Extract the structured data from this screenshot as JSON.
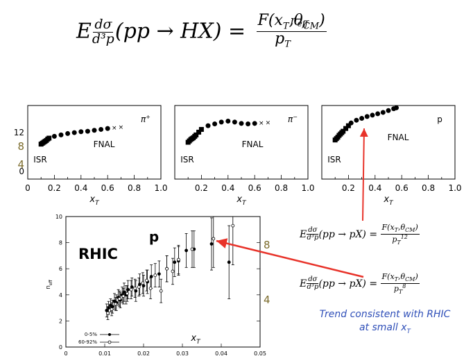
{
  "main_equation": {
    "lhs_E": "E",
    "lhs_num": "dσ",
    "lhs_den": "d³p",
    "lhs_paren": "(pp → HX) =",
    "rhs_num": "F(x",
    "rhs_num_sub": "T",
    "rhs_num_rest": ",θ",
    "rhs_num_sub2": "CM",
    "rhs_num_close": ")",
    "rhs_den": "p",
    "rhs_den_sub": "T",
    "rhs_den_sup": "n",
    "rhs_den_sup_sub": "eff"
  },
  "top_panels": {
    "x_ticks": [
      "0",
      "0.2",
      "0.4",
      "0.6",
      "0.8",
      "1.0"
    ],
    "x_label": "x",
    "x_label_sub": "T",
    "y_ticks": [
      "12",
      "8",
      "4",
      "0"
    ],
    "panels": [
      {
        "particle": "π",
        "charge": "+",
        "fnal": "FNAL",
        "isr": "ISR"
      },
      {
        "particle": "π",
        "charge": "−",
        "fnal": "FNAL",
        "isr": "ISR"
      },
      {
        "particle": "p",
        "charge": "",
        "fnal": "FNAL",
        "isr": "ISR"
      }
    ]
  },
  "rhic_plot": {
    "label": "RHIC",
    "particle": "p",
    "ylabel": "n",
    "ylabel_sub": "eff",
    "xlabel": "x",
    "xlabel_sub": "T",
    "x_ticks": [
      "0",
      "0.01",
      "0.02",
      "0.03",
      "0.04",
      "0.05"
    ],
    "y_ticks": [
      "0",
      "2",
      "4",
      "6",
      "8",
      "10"
    ],
    "right_ticks": [
      "8",
      "4"
    ],
    "legend": [
      "0-5%",
      "60-92%"
    ]
  },
  "eq12": {
    "E": "E",
    "num": "dσ",
    "den": "d³p",
    "paren": "(pp → pX) =",
    "rnum": "F(x",
    "rnum_sub": "T",
    "rnum_mid": ",θ",
    "rnum_sub2": "CM",
    "rnum_close": ")",
    "rden": "p",
    "rden_sub": "T",
    "rden_sup": "12"
  },
  "eq8": {
    "E": "E",
    "num": "dσ",
    "den": "d³p",
    "paren": "(pp → pX) =",
    "rnum": "F(x",
    "rnum_sub": "T",
    "rnum_mid": ",θ",
    "rnum_sub2": "CM",
    "rnum_close": ")",
    "rden": "p",
    "rden_sub": "T",
    "rden_sup": "8"
  },
  "annotation": {
    "line1": "Trend consistent with RHIC",
    "line2": "at small x",
    "line2_sub": "T"
  },
  "colors": {
    "arrow": "#e8332a",
    "note": "#2f4fb8",
    "olive": "#7a6a2a"
  },
  "chart_data": [
    {
      "type": "scatter",
      "title": "π+",
      "series": [
        {
          "name": "ISR",
          "x": [
            0.1,
            0.11,
            0.12,
            0.13,
            0.14,
            0.15,
            0.16
          ],
          "y": [
            7.6,
            7.8,
            8.0,
            8.2,
            8.4,
            8.7,
            8.9
          ]
        },
        {
          "name": "FNAL",
          "x": [
            0.2,
            0.25,
            0.3,
            0.35,
            0.4,
            0.45,
            0.5,
            0.55,
            0.6,
            0.65,
            0.7
          ],
          "y": [
            9.3,
            9.6,
            9.9,
            10.1,
            10.3,
            10.4,
            10.6,
            10.8,
            11.0,
            11.2,
            11.3
          ]
        }
      ],
      "xlim": [
        0,
        1.0
      ],
      "ylim": [
        0,
        16
      ]
    },
    {
      "type": "scatter",
      "title": "π−",
      "series": [
        {
          "name": "ISR",
          "x": [
            0.1,
            0.11,
            0.12,
            0.13,
            0.14,
            0.15,
            0.16,
            0.18,
            0.2
          ],
          "y": [
            8.0,
            8.3,
            8.6,
            8.8,
            9.0,
            9.3,
            9.6,
            10.2,
            10.8
          ]
        },
        {
          "name": "FNAL",
          "x": [
            0.25,
            0.3,
            0.35,
            0.4,
            0.45,
            0.5,
            0.55,
            0.6,
            0.65,
            0.7
          ],
          "y": [
            11.6,
            12.0,
            12.4,
            12.6,
            12.4,
            12.1,
            12.0,
            12.1,
            12.2,
            12.3
          ]
        }
      ],
      "xlim": [
        0,
        1.0
      ],
      "ylim": [
        0,
        16
      ]
    },
    {
      "type": "scatter",
      "title": "p",
      "series": [
        {
          "name": "ISR",
          "x": [
            0.1,
            0.11,
            0.12,
            0.13,
            0.14,
            0.15,
            0.16,
            0.18,
            0.2
          ],
          "y": [
            8.5,
            8.8,
            9.1,
            9.5,
            9.8,
            10.1,
            10.4,
            11.0,
            11.6
          ]
        },
        {
          "name": "FNAL",
          "x": [
            0.22,
            0.26,
            0.3,
            0.34,
            0.38,
            0.42,
            0.46,
            0.5,
            0.54,
            0.56
          ],
          "y": [
            12.2,
            12.8,
            13.2,
            13.6,
            13.9,
            14.2,
            14.5,
            14.9,
            15.3,
            15.5
          ]
        }
      ],
      "xlim": [
        0,
        1.0
      ],
      "ylim": [
        0,
        16
      ]
    },
    {
      "type": "scatter",
      "title": "",
      "series": [
        {
          "name": "0-5%",
          "x": [
            0.0105,
            0.011,
            0.0115,
            0.012,
            0.0125,
            0.013,
            0.0135,
            0.014,
            0.0145,
            0.015,
            0.0155,
            0.016,
            0.017,
            0.018,
            0.019,
            0.02,
            0.021,
            0.022,
            0.024,
            0.026,
            0.028,
            0.029,
            0.031,
            0.033,
            0.0375,
            0.042
          ],
          "y": [
            2.8,
            3.0,
            3.2,
            3.1,
            3.5,
            3.4,
            3.8,
            3.6,
            4.0,
            4.2,
            4.0,
            4.4,
            4.6,
            4.3,
            4.8,
            4.7,
            5.0,
            5.4,
            5.6,
            6.0,
            6.5,
            6.6,
            7.4,
            7.5,
            7.9,
            6.5
          ],
          "yerr": [
            0.5,
            0.5,
            0.5,
            0.5,
            0.6,
            0.6,
            0.6,
            0.6,
            0.6,
            0.7,
            0.7,
            0.7,
            0.7,
            0.8,
            0.8,
            0.8,
            0.9,
            0.9,
            1.0,
            1.0,
            1.1,
            1.1,
            1.3,
            1.4,
            2.0,
            2.8
          ]
        },
        {
          "name": "60-92%",
          "x": [
            0.0108,
            0.0118,
            0.0128,
            0.0138,
            0.0148,
            0.0158,
            0.0168,
            0.0178,
            0.0188,
            0.0198,
            0.0208,
            0.0218,
            0.023,
            0.0245,
            0.026,
            0.0275,
            0.029,
            0.0325,
            0.038,
            0.043
          ],
          "y": [
            2.6,
            2.9,
            3.3,
            3.7,
            3.9,
            4.1,
            4.4,
            4.5,
            4.6,
            4.9,
            5.1,
            4.5,
            5.5,
            4.3,
            6.0,
            5.8,
            6.7,
            7.5,
            8.3,
            9.3
          ],
          "yerr": [
            0.5,
            0.5,
            0.5,
            0.6,
            0.6,
            0.6,
            0.7,
            0.7,
            0.7,
            0.8,
            0.8,
            0.8,
            0.9,
            0.9,
            1.0,
            1.0,
            1.1,
            1.4,
            2.2,
            3.0
          ]
        }
      ],
      "xlabel": "xT",
      "ylabel": "neff",
      "xlim": [
        0,
        0.05
      ],
      "ylim": [
        0,
        10
      ]
    }
  ]
}
